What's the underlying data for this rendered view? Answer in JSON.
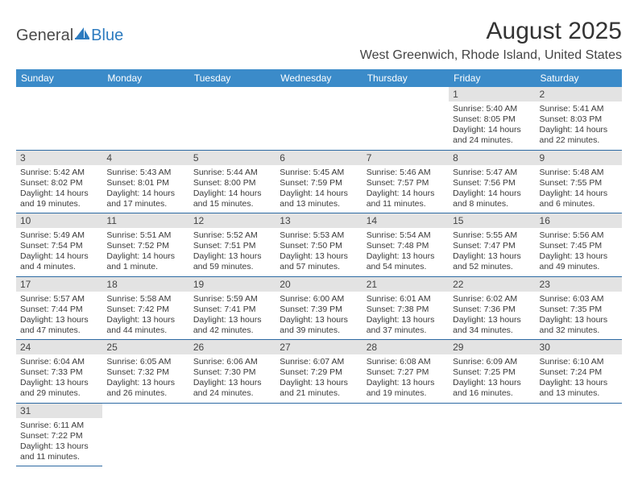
{
  "logo": {
    "part1": "General",
    "part2": "Blue",
    "sail_color": "#2d7bbf"
  },
  "title": "August 2025",
  "location": "West Greenwich, Rhode Island, United States",
  "colors": {
    "header_bg": "#3b8bc9",
    "header_text": "#ffffff",
    "daynum_bg": "#e3e3e3",
    "row_border": "#2d6aa3",
    "body_text": "#3a3a3a"
  },
  "weekdays": [
    "Sunday",
    "Monday",
    "Tuesday",
    "Wednesday",
    "Thursday",
    "Friday",
    "Saturday"
  ],
  "weeks": [
    [
      null,
      null,
      null,
      null,
      null,
      {
        "n": "1",
        "sr": "Sunrise: 5:40 AM",
        "ss": "Sunset: 8:05 PM",
        "d1": "Daylight: 14 hours",
        "d2": "and 24 minutes."
      },
      {
        "n": "2",
        "sr": "Sunrise: 5:41 AM",
        "ss": "Sunset: 8:03 PM",
        "d1": "Daylight: 14 hours",
        "d2": "and 22 minutes."
      }
    ],
    [
      {
        "n": "3",
        "sr": "Sunrise: 5:42 AM",
        "ss": "Sunset: 8:02 PM",
        "d1": "Daylight: 14 hours",
        "d2": "and 19 minutes."
      },
      {
        "n": "4",
        "sr": "Sunrise: 5:43 AM",
        "ss": "Sunset: 8:01 PM",
        "d1": "Daylight: 14 hours",
        "d2": "and 17 minutes."
      },
      {
        "n": "5",
        "sr": "Sunrise: 5:44 AM",
        "ss": "Sunset: 8:00 PM",
        "d1": "Daylight: 14 hours",
        "d2": "and 15 minutes."
      },
      {
        "n": "6",
        "sr": "Sunrise: 5:45 AM",
        "ss": "Sunset: 7:59 PM",
        "d1": "Daylight: 14 hours",
        "d2": "and 13 minutes."
      },
      {
        "n": "7",
        "sr": "Sunrise: 5:46 AM",
        "ss": "Sunset: 7:57 PM",
        "d1": "Daylight: 14 hours",
        "d2": "and 11 minutes."
      },
      {
        "n": "8",
        "sr": "Sunrise: 5:47 AM",
        "ss": "Sunset: 7:56 PM",
        "d1": "Daylight: 14 hours",
        "d2": "and 8 minutes."
      },
      {
        "n": "9",
        "sr": "Sunrise: 5:48 AM",
        "ss": "Sunset: 7:55 PM",
        "d1": "Daylight: 14 hours",
        "d2": "and 6 minutes."
      }
    ],
    [
      {
        "n": "10",
        "sr": "Sunrise: 5:49 AM",
        "ss": "Sunset: 7:54 PM",
        "d1": "Daylight: 14 hours",
        "d2": "and 4 minutes."
      },
      {
        "n": "11",
        "sr": "Sunrise: 5:51 AM",
        "ss": "Sunset: 7:52 PM",
        "d1": "Daylight: 14 hours",
        "d2": "and 1 minute."
      },
      {
        "n": "12",
        "sr": "Sunrise: 5:52 AM",
        "ss": "Sunset: 7:51 PM",
        "d1": "Daylight: 13 hours",
        "d2": "and 59 minutes."
      },
      {
        "n": "13",
        "sr": "Sunrise: 5:53 AM",
        "ss": "Sunset: 7:50 PM",
        "d1": "Daylight: 13 hours",
        "d2": "and 57 minutes."
      },
      {
        "n": "14",
        "sr": "Sunrise: 5:54 AM",
        "ss": "Sunset: 7:48 PM",
        "d1": "Daylight: 13 hours",
        "d2": "and 54 minutes."
      },
      {
        "n": "15",
        "sr": "Sunrise: 5:55 AM",
        "ss": "Sunset: 7:47 PM",
        "d1": "Daylight: 13 hours",
        "d2": "and 52 minutes."
      },
      {
        "n": "16",
        "sr": "Sunrise: 5:56 AM",
        "ss": "Sunset: 7:45 PM",
        "d1": "Daylight: 13 hours",
        "d2": "and 49 minutes."
      }
    ],
    [
      {
        "n": "17",
        "sr": "Sunrise: 5:57 AM",
        "ss": "Sunset: 7:44 PM",
        "d1": "Daylight: 13 hours",
        "d2": "and 47 minutes."
      },
      {
        "n": "18",
        "sr": "Sunrise: 5:58 AM",
        "ss": "Sunset: 7:42 PM",
        "d1": "Daylight: 13 hours",
        "d2": "and 44 minutes."
      },
      {
        "n": "19",
        "sr": "Sunrise: 5:59 AM",
        "ss": "Sunset: 7:41 PM",
        "d1": "Daylight: 13 hours",
        "d2": "and 42 minutes."
      },
      {
        "n": "20",
        "sr": "Sunrise: 6:00 AM",
        "ss": "Sunset: 7:39 PM",
        "d1": "Daylight: 13 hours",
        "d2": "and 39 minutes."
      },
      {
        "n": "21",
        "sr": "Sunrise: 6:01 AM",
        "ss": "Sunset: 7:38 PM",
        "d1": "Daylight: 13 hours",
        "d2": "and 37 minutes."
      },
      {
        "n": "22",
        "sr": "Sunrise: 6:02 AM",
        "ss": "Sunset: 7:36 PM",
        "d1": "Daylight: 13 hours",
        "d2": "and 34 minutes."
      },
      {
        "n": "23",
        "sr": "Sunrise: 6:03 AM",
        "ss": "Sunset: 7:35 PM",
        "d1": "Daylight: 13 hours",
        "d2": "and 32 minutes."
      }
    ],
    [
      {
        "n": "24",
        "sr": "Sunrise: 6:04 AM",
        "ss": "Sunset: 7:33 PM",
        "d1": "Daylight: 13 hours",
        "d2": "and 29 minutes."
      },
      {
        "n": "25",
        "sr": "Sunrise: 6:05 AM",
        "ss": "Sunset: 7:32 PM",
        "d1": "Daylight: 13 hours",
        "d2": "and 26 minutes."
      },
      {
        "n": "26",
        "sr": "Sunrise: 6:06 AM",
        "ss": "Sunset: 7:30 PM",
        "d1": "Daylight: 13 hours",
        "d2": "and 24 minutes."
      },
      {
        "n": "27",
        "sr": "Sunrise: 6:07 AM",
        "ss": "Sunset: 7:29 PM",
        "d1": "Daylight: 13 hours",
        "d2": "and 21 minutes."
      },
      {
        "n": "28",
        "sr": "Sunrise: 6:08 AM",
        "ss": "Sunset: 7:27 PM",
        "d1": "Daylight: 13 hours",
        "d2": "and 19 minutes."
      },
      {
        "n": "29",
        "sr": "Sunrise: 6:09 AM",
        "ss": "Sunset: 7:25 PM",
        "d1": "Daylight: 13 hours",
        "d2": "and 16 minutes."
      },
      {
        "n": "30",
        "sr": "Sunrise: 6:10 AM",
        "ss": "Sunset: 7:24 PM",
        "d1": "Daylight: 13 hours",
        "d2": "and 13 minutes."
      }
    ],
    [
      {
        "n": "31",
        "sr": "Sunrise: 6:11 AM",
        "ss": "Sunset: 7:22 PM",
        "d1": "Daylight: 13 hours",
        "d2": "and 11 minutes."
      },
      null,
      null,
      null,
      null,
      null,
      null
    ]
  ]
}
